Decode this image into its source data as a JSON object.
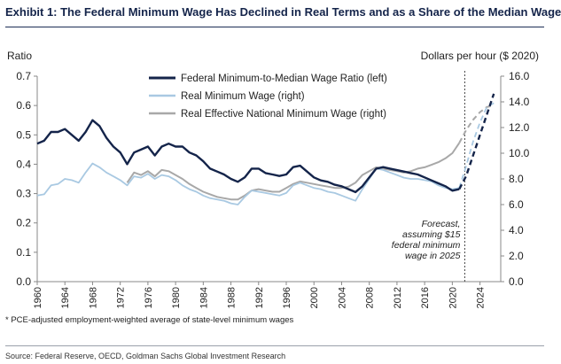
{
  "header": {
    "title": "Exhibit 1: The Federal Minimum Wage Has Declined in Real Terms and as a Share of the Median Wage"
  },
  "footnote": "* PCE-adjusted employment-weighted average of state-level minimum wages",
  "source": "Source: Federal Reserve, OECD, Goldman Sachs Global Investment Research",
  "chart_data": {
    "type": "line",
    "left_axis_label": "Ratio",
    "right_axis_label": "Dollars per hour ($ 2020)",
    "left_ylim": [
      0.0,
      0.7
    ],
    "right_ylim": [
      0.0,
      16.0
    ],
    "xlim": [
      1960,
      2027
    ],
    "x_ticks": [
      1960,
      1964,
      1968,
      1972,
      1976,
      1980,
      1984,
      1988,
      1992,
      1996,
      2000,
      2004,
      2008,
      2012,
      2016,
      2020,
      2024
    ],
    "left_ticks": [
      "0.0",
      "0.1",
      "0.2",
      "0.3",
      "0.4",
      "0.5",
      "0.6",
      "0.7"
    ],
    "right_ticks": [
      "0.0",
      "2.0",
      "4.0",
      "6.0",
      "8.0",
      "10.0",
      "12.0",
      "14.0",
      "16.0"
    ],
    "grid": false,
    "legend_position": "top-center",
    "forecast_start": 2021.8,
    "annotation": [
      "Forecast,",
      "assuming $15",
      "federal minimum",
      "wage in 2025"
    ],
    "series": [
      {
        "name": "Federal Minimum-to-Median Wage Ratio (left)",
        "axis": "left",
        "color": "#14244a",
        "width": 2.4,
        "x": [
          1960,
          1961,
          1962,
          1963,
          1964,
          1965,
          1966,
          1967,
          1968,
          1969,
          1970,
          1971,
          1972,
          1973,
          1974,
          1975,
          1976,
          1977,
          1978,
          1979,
          1980,
          1981,
          1982,
          1983,
          1984,
          1985,
          1986,
          1987,
          1988,
          1989,
          1990,
          1991,
          1992,
          1993,
          1994,
          1995,
          1996,
          1997,
          1998,
          1999,
          2000,
          2001,
          2002,
          2003,
          2004,
          2005,
          2006,
          2007,
          2008,
          2009,
          2010,
          2011,
          2012,
          2013,
          2014,
          2015,
          2016,
          2017,
          2018,
          2019,
          2020,
          2021
        ],
        "y": [
          0.47,
          0.48,
          0.51,
          0.51,
          0.52,
          0.5,
          0.48,
          0.51,
          0.55,
          0.53,
          0.49,
          0.46,
          0.44,
          0.4,
          0.44,
          0.45,
          0.46,
          0.43,
          0.46,
          0.47,
          0.46,
          0.46,
          0.44,
          0.43,
          0.41,
          0.385,
          0.375,
          0.365,
          0.35,
          0.34,
          0.355,
          0.385,
          0.385,
          0.37,
          0.365,
          0.36,
          0.365,
          0.39,
          0.395,
          0.375,
          0.355,
          0.345,
          0.34,
          0.33,
          0.325,
          0.315,
          0.305,
          0.325,
          0.355,
          0.385,
          0.39,
          0.385,
          0.38,
          0.375,
          0.37,
          0.365,
          0.355,
          0.345,
          0.335,
          0.325,
          0.31,
          0.315
        ],
        "forecast_x": [
          2021,
          2022,
          2023,
          2024,
          2025,
          2026
        ],
        "forecast_y": [
          0.315,
          0.36,
          0.43,
          0.5,
          0.57,
          0.64
        ]
      },
      {
        "name": "Real Minimum Wage (right)",
        "axis": "right",
        "color": "#a9c9e2",
        "width": 1.8,
        "x": [
          1960,
          1961,
          1962,
          1963,
          1964,
          1965,
          1966,
          1967,
          1968,
          1969,
          1970,
          1971,
          1972,
          1973,
          1974,
          1975,
          1976,
          1977,
          1978,
          1979,
          1980,
          1981,
          1982,
          1983,
          1984,
          1985,
          1986,
          1987,
          1988,
          1989,
          1990,
          1991,
          1992,
          1993,
          1994,
          1995,
          1996,
          1997,
          1998,
          1999,
          2000,
          2001,
          2002,
          2003,
          2004,
          2005,
          2006,
          2007,
          2008,
          2009,
          2010,
          2011,
          2012,
          2013,
          2014,
          2015,
          2016,
          2017,
          2018,
          2019,
          2020,
          2021
        ],
        "y": [
          6.7,
          6.8,
          7.5,
          7.6,
          8.0,
          7.9,
          7.7,
          8.5,
          9.2,
          8.9,
          8.5,
          8.2,
          7.9,
          7.5,
          8.2,
          8.1,
          8.4,
          8.0,
          8.3,
          8.2,
          7.9,
          7.5,
          7.2,
          7.0,
          6.7,
          6.5,
          6.4,
          6.3,
          6.1,
          6.0,
          6.6,
          7.1,
          7.0,
          6.9,
          6.8,
          6.7,
          6.9,
          7.5,
          7.7,
          7.5,
          7.3,
          7.2,
          7.0,
          6.9,
          6.7,
          6.5,
          6.3,
          7.2,
          8.0,
          8.8,
          8.7,
          8.5,
          8.3,
          8.1,
          8.0,
          8.0,
          7.9,
          7.8,
          7.5,
          7.3,
          7.2,
          7.3
        ],
        "forecast_x": [
          2021,
          2022,
          2023,
          2024,
          2025,
          2026
        ],
        "forecast_y": [
          7.3,
          9.0,
          10.9,
          12.4,
          13.6,
          13.9
        ]
      },
      {
        "name": "Real Effective National Minimum Wage (right)",
        "axis": "right",
        "color": "#a8a8a8",
        "width": 2.0,
        "x": [
          1973,
          1974,
          1975,
          1976,
          1977,
          1978,
          1979,
          1980,
          1981,
          1982,
          1983,
          1984,
          1985,
          1986,
          1987,
          1988,
          1989,
          1990,
          1991,
          1992,
          1993,
          1994,
          1995,
          1996,
          1997,
          1998,
          1999,
          2000,
          2001,
          2002,
          2003,
          2004,
          2005,
          2006,
          2007,
          2008,
          2009,
          2010,
          2011,
          2012,
          2013,
          2014,
          2015,
          2016,
          2017,
          2018,
          2019,
          2020,
          2021
        ],
        "y": [
          7.7,
          8.5,
          8.3,
          8.6,
          8.2,
          8.7,
          8.6,
          8.3,
          8.0,
          7.6,
          7.3,
          7.0,
          6.8,
          6.6,
          6.5,
          6.4,
          6.4,
          6.7,
          7.1,
          7.2,
          7.1,
          7.0,
          7.0,
          7.3,
          7.6,
          7.8,
          7.7,
          7.6,
          7.5,
          7.4,
          7.3,
          7.3,
          7.4,
          7.7,
          8.3,
          8.6,
          8.9,
          8.8,
          8.7,
          8.6,
          8.5,
          8.6,
          8.8,
          8.9,
          9.1,
          9.3,
          9.6,
          10.0,
          10.8
        ],
        "forecast_x": [
          2021,
          2022,
          2023,
          2024,
          2025,
          2026
        ],
        "forecast_y": [
          10.8,
          11.8,
          12.6,
          13.2,
          13.6,
          13.7
        ]
      }
    ]
  }
}
